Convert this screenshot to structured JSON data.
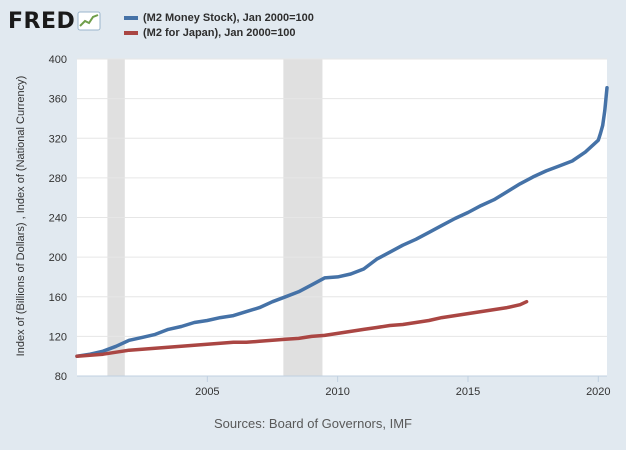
{
  "brand": {
    "logo_text": "FRED",
    "logo_icon": "fred-chart-icon"
  },
  "footer": {
    "source": "Sources: Board of Governors, IMF"
  },
  "colors": {
    "plot_bg": "#ffffff",
    "recession": "#e0e0e0",
    "series_us": "#4572a7",
    "series_japan": "#aa4643"
  },
  "chart_data": {
    "type": "line",
    "title": "",
    "xlabel": "",
    "ylabel": "Index of (Billions of Dollars) , Index of (National Currency)",
    "xlim": [
      "2000-01",
      "2020-05"
    ],
    "ylim": [
      80,
      400
    ],
    "yticks": [
      80,
      120,
      160,
      200,
      240,
      280,
      320,
      360,
      400
    ],
    "xticks": [
      "2005",
      "2010",
      "2015",
      "2020"
    ],
    "grid": "horizontal",
    "legend_position": "top-left",
    "recessions": [
      [
        "2001-03",
        "2001-11"
      ],
      [
        "2007-12",
        "2009-06"
      ]
    ],
    "series": [
      {
        "name": "(M2 Money Stock), Jan 2000=100",
        "color": "#4572a7",
        "points": [
          [
            "2000-01",
            100
          ],
          [
            "2000-07",
            102
          ],
          [
            "2001-01",
            105
          ],
          [
            "2001-07",
            110
          ],
          [
            "2002-01",
            116
          ],
          [
            "2002-07",
            119
          ],
          [
            "2003-01",
            122
          ],
          [
            "2003-07",
            127
          ],
          [
            "2004-01",
            130
          ],
          [
            "2004-07",
            134
          ],
          [
            "2005-01",
            136
          ],
          [
            "2005-07",
            139
          ],
          [
            "2006-01",
            141
          ],
          [
            "2006-07",
            145
          ],
          [
            "2007-01",
            149
          ],
          [
            "2007-07",
            155
          ],
          [
            "2008-01",
            160
          ],
          [
            "2008-07",
            165
          ],
          [
            "2009-01",
            172
          ],
          [
            "2009-07",
            179
          ],
          [
            "2010-01",
            180
          ],
          [
            "2010-07",
            183
          ],
          [
            "2011-01",
            188
          ],
          [
            "2011-07",
            198
          ],
          [
            "2012-01",
            205
          ],
          [
            "2012-07",
            212
          ],
          [
            "2013-01",
            218
          ],
          [
            "2013-07",
            225
          ],
          [
            "2014-01",
            232
          ],
          [
            "2014-07",
            239
          ],
          [
            "2015-01",
            245
          ],
          [
            "2015-07",
            252
          ],
          [
            "2016-01",
            258
          ],
          [
            "2016-07",
            266
          ],
          [
            "2017-01",
            274
          ],
          [
            "2017-07",
            281
          ],
          [
            "2018-01",
            287
          ],
          [
            "2018-07",
            292
          ],
          [
            "2019-01",
            297
          ],
          [
            "2019-07",
            306
          ],
          [
            "2020-01",
            318
          ],
          [
            "2020-02",
            325
          ],
          [
            "2020-03",
            333
          ],
          [
            "2020-04",
            348
          ],
          [
            "2020-05",
            371
          ]
        ]
      },
      {
        "name": "(M2 for Japan), Jan 2000=100",
        "color": "#aa4643",
        "points": [
          [
            "2000-01",
            100
          ],
          [
            "2000-07",
            101
          ],
          [
            "2001-01",
            102
          ],
          [
            "2001-07",
            104
          ],
          [
            "2002-01",
            106
          ],
          [
            "2002-07",
            107
          ],
          [
            "2003-01",
            108
          ],
          [
            "2003-07",
            109
          ],
          [
            "2004-01",
            110
          ],
          [
            "2004-07",
            111
          ],
          [
            "2005-01",
            112
          ],
          [
            "2005-07",
            113
          ],
          [
            "2006-01",
            114
          ],
          [
            "2006-07",
            114
          ],
          [
            "2007-01",
            115
          ],
          [
            "2007-07",
            116
          ],
          [
            "2008-01",
            117
          ],
          [
            "2008-07",
            118
          ],
          [
            "2009-01",
            120
          ],
          [
            "2009-07",
            121
          ],
          [
            "2010-01",
            123
          ],
          [
            "2010-07",
            125
          ],
          [
            "2011-01",
            127
          ],
          [
            "2011-07",
            129
          ],
          [
            "2012-01",
            131
          ],
          [
            "2012-07",
            132
          ],
          [
            "2013-01",
            134
          ],
          [
            "2013-07",
            136
          ],
          [
            "2014-01",
            139
          ],
          [
            "2014-07",
            141
          ],
          [
            "2015-01",
            143
          ],
          [
            "2015-07",
            145
          ],
          [
            "2016-01",
            147
          ],
          [
            "2016-07",
            149
          ],
          [
            "2017-01",
            152
          ],
          [
            "2017-04",
            155
          ]
        ]
      }
    ]
  }
}
